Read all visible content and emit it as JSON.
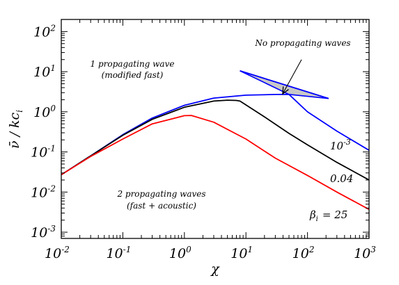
{
  "chart_data": {
    "type": "line",
    "xscale": "log",
    "yscale": "log",
    "xlim": [
      0.01,
      1000
    ],
    "ylim": [
      0.0007,
      200
    ],
    "xlabel": "χ",
    "ylabel": "ν̄ / kc",
    "ylabel_sub": "i",
    "x_ticks": [
      {
        "base": "10",
        "exp": "-2",
        "value": 0.01
      },
      {
        "base": "10",
        "exp": "-1",
        "value": 0.1
      },
      {
        "base": "10",
        "exp": "0",
        "value": 1
      },
      {
        "base": "10",
        "exp": "1",
        "value": 10
      },
      {
        "base": "10",
        "exp": "2",
        "value": 100
      },
      {
        "base": "10",
        "exp": "3",
        "value": 1000
      }
    ],
    "y_ticks": [
      {
        "base": "10",
        "exp": "-3",
        "value": 0.001
      },
      {
        "base": "10",
        "exp": "-2",
        "value": 0.01
      },
      {
        "base": "10",
        "exp": "-1",
        "value": 0.1
      },
      {
        "base": "10",
        "exp": "0",
        "value": 1
      },
      {
        "base": "10",
        "exp": "1",
        "value": 10
      },
      {
        "base": "10",
        "exp": "2",
        "value": 100
      }
    ],
    "series": [
      {
        "color": "#0000ff",
        "points": [
          [
            0.01,
            0.027
          ],
          [
            0.03,
            0.08
          ],
          [
            0.1,
            0.27
          ],
          [
            0.3,
            0.7
          ],
          [
            1,
            1.45
          ],
          [
            3,
            2.2
          ],
          [
            10,
            2.6
          ],
          [
            30,
            2.7
          ],
          [
            50,
            2.72
          ],
          [
            100,
            1.0
          ],
          [
            300,
            0.33
          ],
          [
            1000,
            0.11
          ]
        ]
      },
      {
        "color": "#000000",
        "points": [
          [
            0.01,
            0.027
          ],
          [
            0.03,
            0.08
          ],
          [
            0.1,
            0.26
          ],
          [
            0.3,
            0.65
          ],
          [
            1,
            1.3
          ],
          [
            3,
            1.85
          ],
          [
            5,
            1.95
          ],
          [
            7,
            1.92
          ],
          [
            8,
            1.85
          ],
          [
            20,
            0.75
          ],
          [
            50,
            0.29
          ],
          [
            100,
            0.15
          ],
          [
            300,
            0.055
          ],
          [
            1000,
            0.02
          ]
        ]
      },
      {
        "color": "#ff0000",
        "points": [
          [
            0.01,
            0.027
          ],
          [
            0.03,
            0.077
          ],
          [
            0.1,
            0.21
          ],
          [
            0.3,
            0.5
          ],
          [
            1,
            0.8
          ],
          [
            1.3,
            0.81
          ],
          [
            3,
            0.55
          ],
          [
            10,
            0.21
          ],
          [
            30,
            0.07
          ],
          [
            100,
            0.026
          ],
          [
            300,
            0.01
          ],
          [
            1000,
            0.0037
          ]
        ]
      },
      {
        "color": "#0000ff",
        "points": [
          [
            8,
            10.5
          ],
          [
            220,
            2.15
          ]
        ]
      }
    ],
    "region": {
      "name": "no-propagating-region",
      "fill": "#c8c8c8",
      "stroke": "#0000ff",
      "points": [
        [
          8,
          10.5
        ],
        [
          50,
          2.72
        ],
        [
          220,
          2.15
        ],
        [
          8,
          10.5
        ]
      ]
    },
    "annotations": [
      {
        "id": "one-wave",
        "lines": [
          "1 propagating wave",
          "(modified fast)"
        ]
      },
      {
        "id": "two-waves",
        "lines": [
          "2 propagating waves",
          "(fast + acoustic)"
        ]
      },
      {
        "id": "no-waves",
        "lines": [
          "No propagating waves"
        ]
      }
    ],
    "curve_labels": [
      {
        "id": "beta-blue",
        "text": "10",
        "exp": "-3"
      },
      {
        "id": "beta-black",
        "text": "0.04"
      },
      {
        "id": "beta-red",
        "prefix": "β",
        "sub": "i",
        "text": "= 25"
      }
    ],
    "arrow": {
      "from": [
        80,
        20
      ],
      "to": [
        40,
        2.9
      ]
    }
  }
}
